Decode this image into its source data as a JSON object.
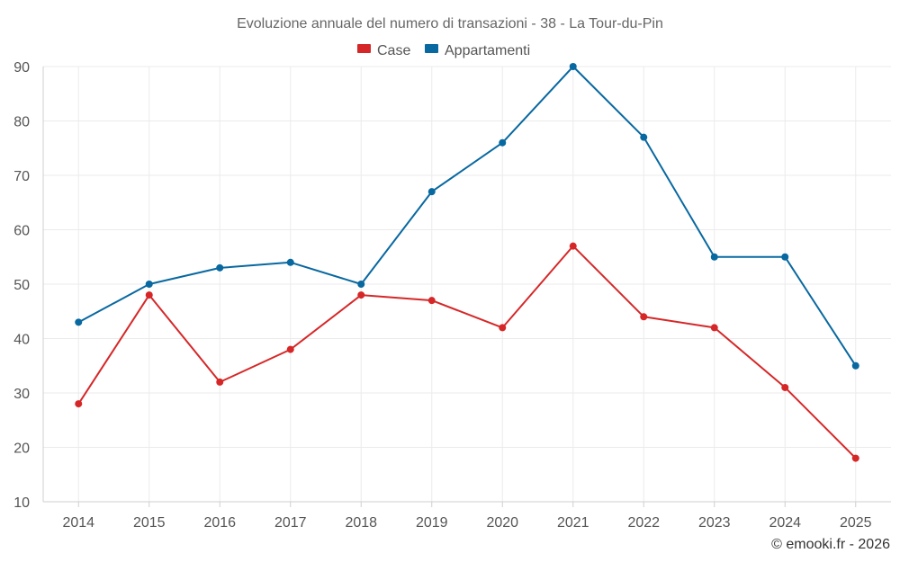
{
  "chart_data": {
    "type": "line",
    "title": "Evoluzione annuale del numero di transazioni - 38 - La Tour-du-Pin",
    "categories": [
      "2014",
      "2015",
      "2016",
      "2017",
      "2018",
      "2019",
      "2020",
      "2021",
      "2022",
      "2023",
      "2024",
      "2025"
    ],
    "series": [
      {
        "name": "Case",
        "color": "#d62728",
        "values": [
          28,
          48,
          32,
          38,
          48,
          47,
          42,
          57,
          44,
          42,
          31,
          18
        ]
      },
      {
        "name": "Appartamenti",
        "color": "#0868a0",
        "values": [
          43,
          50,
          53,
          54,
          50,
          67,
          76,
          90,
          77,
          55,
          55,
          35
        ]
      }
    ],
    "ylim": [
      10,
      90
    ],
    "yticks": [
      10,
      20,
      30,
      40,
      50,
      60,
      70,
      80,
      90
    ],
    "xlabel": "",
    "ylabel": "",
    "grid": true,
    "legend_position": "top-center"
  },
  "credit": "© emooki.fr - 2026"
}
